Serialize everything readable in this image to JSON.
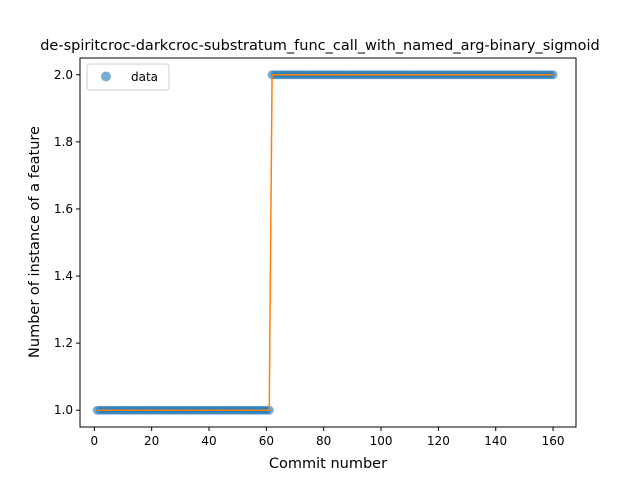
{
  "chart_data": {
    "type": "scatter",
    "title": "de-spiritcroc-darkcroc-substratum_func_call_with_named_arg-binary_sigmoid",
    "xlabel": "Commit number",
    "ylabel": "Number of instance of a feature",
    "xlim": [
      -5,
      168
    ],
    "ylim": [
      0.95,
      2.05
    ],
    "xticks": [
      0,
      20,
      40,
      60,
      80,
      100,
      120,
      140,
      160
    ],
    "yticks": [
      1.0,
      1.2,
      1.4,
      1.6,
      1.8,
      2.0
    ],
    "xtick_labels": [
      "0",
      "20",
      "40",
      "60",
      "80",
      "100",
      "120",
      "140",
      "160"
    ],
    "ytick_labels": [
      "1.0",
      "1.2",
      "1.4",
      "1.6",
      "1.8",
      "2.0"
    ],
    "grid": false,
    "legend": {
      "position": "top-left",
      "entries": [
        "data"
      ]
    },
    "series": [
      {
        "name": "data",
        "kind": "points",
        "color": "#1f77b4",
        "segments": [
          {
            "x_start": 1,
            "x_end": 61,
            "y": 1
          },
          {
            "x_start": 62,
            "x_end": 160,
            "y": 2
          }
        ]
      },
      {
        "kind": "line",
        "color": "#ff7f0e",
        "x": [
          1,
          61,
          62,
          160
        ],
        "y": [
          1,
          1,
          2,
          2
        ]
      }
    ]
  }
}
